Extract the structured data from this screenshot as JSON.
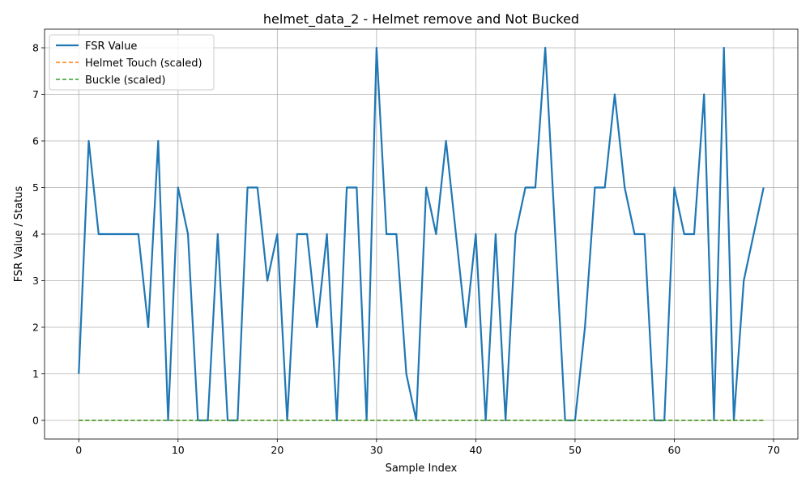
{
  "chart_data": {
    "type": "line",
    "title": "helmet_data_2 - Helmet remove and Not Bucked",
    "xlabel": "Sample Index",
    "ylabel": "FSR Value / Status",
    "xlim": [
      -3.45,
      72.45
    ],
    "ylim": [
      -0.4,
      8.4
    ],
    "xticks": [
      0,
      10,
      20,
      30,
      40,
      50,
      60,
      70
    ],
    "yticks": [
      0,
      1,
      2,
      3,
      4,
      5,
      6,
      7,
      8
    ],
    "grid": true,
    "legend_position": "upper-left",
    "series": [
      {
        "name": "FSR Value",
        "color": "#1f77b4",
        "style": "solid",
        "values": [
          1,
          6,
          4,
          4,
          4,
          4,
          4,
          2,
          6,
          0,
          5,
          4,
          0,
          0,
          4,
          0,
          0,
          5,
          5,
          3,
          4,
          0,
          4,
          4,
          2,
          4,
          0,
          5,
          5,
          0,
          8,
          4,
          4,
          1,
          0,
          5,
          4,
          6,
          4,
          2,
          4,
          0,
          4,
          0,
          4,
          5,
          5,
          8,
          4,
          0,
          0,
          2,
          5,
          5,
          7,
          5,
          4,
          4,
          0,
          0,
          5,
          4,
          4,
          7,
          0,
          8,
          0,
          3,
          4,
          5
        ]
      },
      {
        "name": "Helmet Touch (scaled)",
        "color": "#ff7f0e",
        "style": "dashed",
        "values": [
          0,
          0,
          0,
          0,
          0,
          0,
          0,
          0,
          0,
          0,
          0,
          0,
          0,
          0,
          0,
          0,
          0,
          0,
          0,
          0,
          0,
          0,
          0,
          0,
          0,
          0,
          0,
          0,
          0,
          0,
          0,
          0,
          0,
          0,
          0,
          0,
          0,
          0,
          0,
          0,
          0,
          0,
          0,
          0,
          0,
          0,
          0,
          0,
          0,
          0,
          0,
          0,
          0,
          0,
          0,
          0,
          0,
          0,
          0,
          0,
          0,
          0,
          0,
          0,
          0,
          0,
          0,
          0,
          0,
          0
        ]
      },
      {
        "name": "Buckle (scaled)",
        "color": "#2ca02c",
        "style": "dashed",
        "values": [
          0,
          0,
          0,
          0,
          0,
          0,
          0,
          0,
          0,
          0,
          0,
          0,
          0,
          0,
          0,
          0,
          0,
          0,
          0,
          0,
          0,
          0,
          0,
          0,
          0,
          0,
          0,
          0,
          0,
          0,
          0,
          0,
          0,
          0,
          0,
          0,
          0,
          0,
          0,
          0,
          0,
          0,
          0,
          0,
          0,
          0,
          0,
          0,
          0,
          0,
          0,
          0,
          0,
          0,
          0,
          0,
          0,
          0,
          0,
          0,
          0,
          0,
          0,
          0,
          0,
          0,
          0,
          0,
          0,
          0
        ]
      }
    ]
  }
}
